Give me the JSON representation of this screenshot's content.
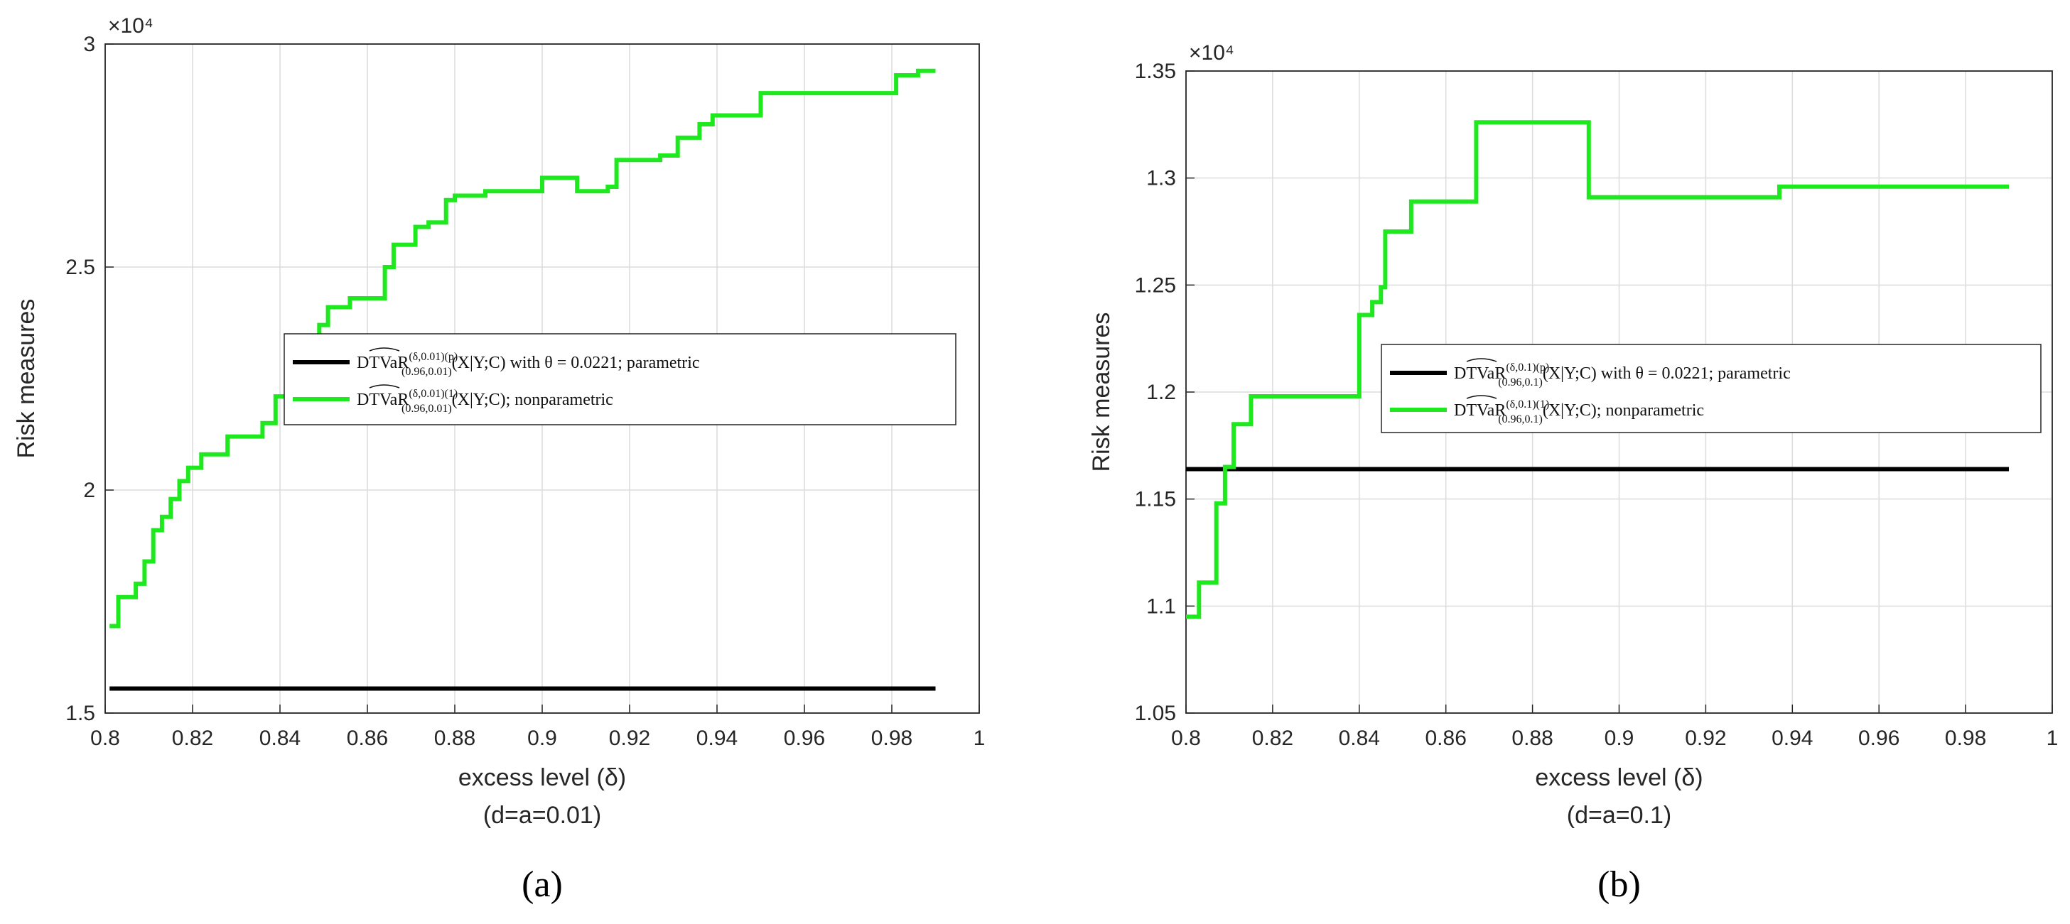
{
  "chart_data": [
    {
      "type": "line",
      "panel_label": "(a)",
      "xlabel": "excess level (δ)",
      "subtitle": "(d=a=0.01)",
      "ylabel": "Risk measures",
      "y_exponent": "×10⁴",
      "xlim": [
        0.8,
        1
      ],
      "ylim": [
        15000,
        30000
      ],
      "xticks": [
        "0.8",
        "0.82",
        "0.84",
        "0.86",
        "0.88",
        "0.9",
        "0.92",
        "0.94",
        "0.96",
        "0.98",
        "1"
      ],
      "yticks": [
        "1.5",
        "2",
        "2.5",
        "3"
      ],
      "grid": true,
      "legend_position": "center-right",
      "series": [
        {
          "name": "DTVaR^{(δ,0.01)(p)}_{(0.96,0.01)}(X|Y;C) with θ = 0.0221; parametric",
          "color": "#000000",
          "step": false,
          "x": [
            0.801,
            0.99
          ],
          "y": [
            15550,
            15550
          ]
        },
        {
          "name": "DTVaR^{(δ,0.01)(1)}_{(0.96,0.01)}(X|Y;C); nonparametric",
          "color": "#1ee81e",
          "step": true,
          "x": [
            0.801,
            0.803,
            0.807,
            0.809,
            0.811,
            0.813,
            0.815,
            0.817,
            0.819,
            0.822,
            0.824,
            0.828,
            0.832,
            0.836,
            0.839,
            0.842,
            0.847,
            0.849,
            0.851,
            0.853,
            0.856,
            0.862,
            0.864,
            0.866,
            0.871,
            0.874,
            0.878,
            0.88,
            0.887,
            0.893,
            0.9,
            0.904,
            0.908,
            0.915,
            0.917,
            0.92,
            0.927,
            0.931,
            0.933,
            0.936,
            0.939,
            0.947,
            0.95,
            0.96,
            0.97,
            0.978,
            0.981,
            0.986,
            0.99
          ],
          "y": [
            16950,
            17600,
            17900,
            18400,
            19100,
            19400,
            19800,
            20200,
            20500,
            20800,
            20800,
            21200,
            21200,
            21500,
            22100,
            22800,
            23000,
            23700,
            24100,
            24100,
            24300,
            24300,
            25000,
            25500,
            25900,
            26000,
            26500,
            26600,
            26700,
            26700,
            27000,
            27000,
            26700,
            26800,
            27400,
            27400,
            27500,
            27900,
            27900,
            28200,
            28400,
            28400,
            28900,
            28900,
            28900,
            28900,
            29300,
            29400,
            29400
          ]
        }
      ]
    },
    {
      "type": "line",
      "panel_label": "(b)",
      "xlabel": "excess level (δ)",
      "subtitle": "(d=a=0.1)",
      "ylabel": "Risk measures",
      "y_exponent": "×10⁴",
      "xlim": [
        0.8,
        1
      ],
      "ylim": [
        10500,
        13500
      ],
      "xticks": [
        "0.8",
        "0.82",
        "0.84",
        "0.86",
        "0.88",
        "0.9",
        "0.92",
        "0.94",
        "0.96",
        "0.98",
        "1"
      ],
      "yticks": [
        "1.05",
        "1.1",
        "1.15",
        "1.2",
        "1.25",
        "1.3",
        "1.35"
      ],
      "grid": true,
      "legend_position": "center-right",
      "series": [
        {
          "name": "DTVaR^{(δ,0.1)(p)}_{(0.96,0.1)}(X|Y;C) with θ = 0.0221; parametric",
          "color": "#000000",
          "step": false,
          "x": [
            0.8,
            0.99
          ],
          "y": [
            11640,
            11640
          ]
        },
        {
          "name": "DTVaR^{(δ,0.1)(1)}_{(0.96,0.1)}(X|Y;C); nonparametric",
          "color": "#1ee81e",
          "step": true,
          "x": [
            0.8,
            0.803,
            0.807,
            0.809,
            0.811,
            0.815,
            0.84,
            0.843,
            0.845,
            0.846,
            0.852,
            0.867,
            0.893,
            0.937,
            0.99
          ],
          "y": [
            10950,
            11110,
            11480,
            11650,
            11850,
            11980,
            12360,
            12420,
            12490,
            12750,
            12890,
            13260,
            12910,
            12960,
            12960
          ]
        }
      ]
    }
  ]
}
